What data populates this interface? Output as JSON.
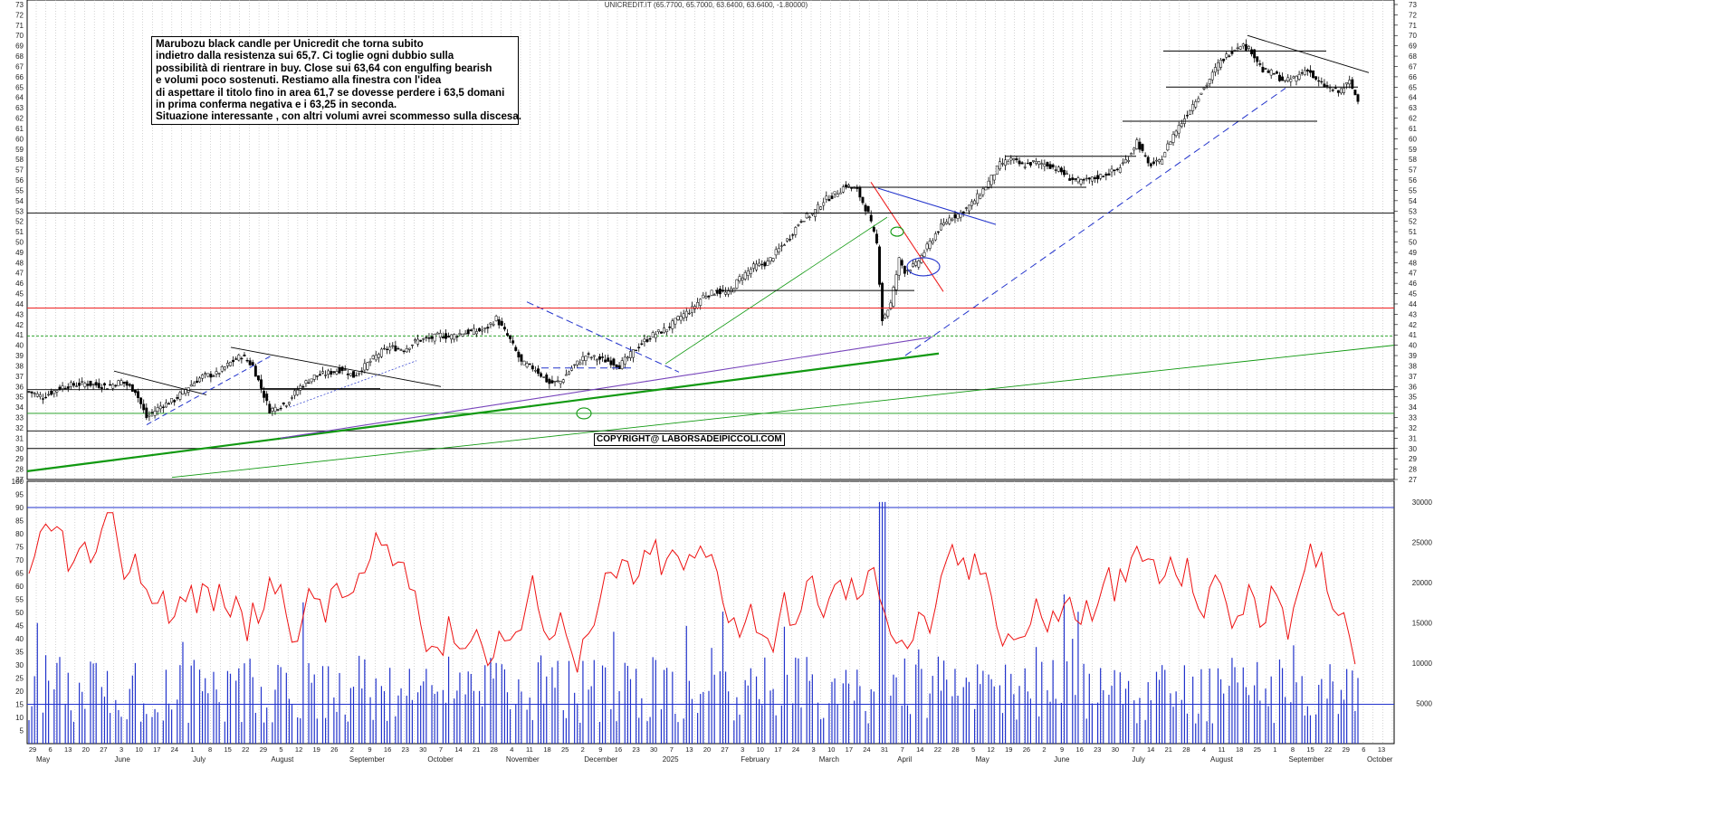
{
  "header": {
    "title": "UNICREDIT.IT (65.7700, 65.7000, 63.6400, 63.6400, -1.80000)"
  },
  "note": {
    "lines": [
      "Marubozu black candle per Unicredit che torna subito",
      "indietro dalla resistenza sui 65,7. Ci toglie ogni dubbio sulla",
      "possibilità di rientrare in buy. Close sui 63,64 con engulfing bearish",
      "e volumi poco sostenuti. Restiamo alla finestra con l'idea",
      "di aspettare il titolo fino in area 61,7 se dovesse perdere i 63,5 domani",
      "in prima conferma negativa e i 63,25 in seconda.",
      "Situazione interessante , con altri volumi avrei scommesso sulla discesa."
    ]
  },
  "copyright": "COPYRIGHT@ LABORSADEIPICCOLI.COM",
  "colors": {
    "candle": "#000000",
    "support_green": "#119911",
    "resistance_red": "#ee2222",
    "trend_blue": "#2233cc",
    "oscillator": "#ee1111",
    "volume": "#2233cc",
    "purple": "#7744bb"
  },
  "chart_data": [
    {
      "type": "candlestick",
      "title": "UNICREDIT.IT (65.7700, 65.7000, 63.6400, 63.6400, -1.80000)",
      "ylim": [
        27,
        73
      ],
      "y_ticks": [
        27,
        28,
        29,
        30,
        31,
        32,
        33,
        34,
        35,
        36,
        37,
        38,
        39,
        40,
        41,
        42,
        43,
        44,
        45,
        46,
        47,
        48,
        49,
        50,
        51,
        52,
        53,
        54,
        55,
        56,
        57,
        58,
        59,
        60,
        61,
        62,
        63,
        64,
        65,
        66,
        67,
        68,
        69,
        70,
        71,
        72,
        73
      ],
      "last_bar": {
        "open": 65.77,
        "high": 65.7,
        "low": 63.64,
        "close": 63.64,
        "change": -1.8
      },
      "months": [
        "May",
        "June",
        "July",
        "August",
        "September",
        "October",
        "November",
        "December",
        "2025",
        "February",
        "March",
        "April",
        "May",
        "June",
        "July",
        "August",
        "September",
        "October"
      ],
      "day_labels": [
        "29",
        "6",
        "13",
        "20",
        "27",
        "3",
        "10",
        "17",
        "24",
        "1",
        "8",
        "15",
        "22",
        "29",
        "5",
        "12",
        "19",
        "26",
        "2",
        "9",
        "16",
        "23",
        "30",
        "7",
        "14",
        "21",
        "28",
        "4",
        "11",
        "18",
        "25",
        "2",
        "9",
        "16",
        "23",
        "30",
        "7",
        "13",
        "20",
        "27",
        "3",
        "10",
        "17",
        "24",
        "3",
        "10",
        "17",
        "24",
        "31",
        "7",
        "14",
        "22",
        "28",
        "5",
        "12",
        "19",
        "26",
        "2",
        "9",
        "16",
        "23",
        "30",
        "7",
        "14",
        "21",
        "28",
        "4",
        "11",
        "18",
        "25",
        "1",
        "8",
        "15",
        "22",
        "29",
        "6",
        "13"
      ],
      "close_path": [
        [
          0,
          35.5
        ],
        [
          5,
          35
        ],
        [
          12,
          36
        ],
        [
          20,
          36.3
        ],
        [
          28,
          36
        ],
        [
          33,
          36.5
        ],
        [
          38,
          35.6
        ],
        [
          42,
          33
        ],
        [
          47,
          34.1
        ],
        [
          52,
          34.7
        ],
        [
          57,
          36
        ],
        [
          62,
          37
        ],
        [
          67,
          37.2
        ],
        [
          72,
          38.3
        ],
        [
          76,
          39
        ],
        [
          80,
          38
        ],
        [
          86,
          33.7
        ],
        [
          92,
          34.4
        ],
        [
          97,
          36
        ],
        [
          102,
          37
        ],
        [
          107,
          37.3
        ],
        [
          112,
          37.7
        ],
        [
          116,
          37
        ],
        [
          121,
          38.2
        ],
        [
          125,
          39.2
        ],
        [
          129,
          39.8
        ],
        [
          134,
          39.6
        ],
        [
          139,
          40.5
        ],
        [
          143,
          40.6
        ],
        [
          147,
          41
        ],
        [
          150,
          40.8
        ],
        [
          155,
          41.2
        ],
        [
          158,
          41.3
        ],
        [
          163,
          41.5
        ],
        [
          167,
          42.6
        ],
        [
          172,
          40.5
        ],
        [
          176,
          38.3
        ],
        [
          181,
          37.7
        ],
        [
          186,
          36.3
        ],
        [
          190,
          36.5
        ],
        [
          194,
          37.8
        ],
        [
          199,
          39
        ],
        [
          203,
          38.7
        ],
        [
          208,
          38.4
        ],
        [
          211,
          38
        ],
        [
          215,
          39.1
        ],
        [
          219,
          40.2
        ],
        [
          223,
          41
        ],
        [
          228,
          41.6
        ],
        [
          233,
          42.8
        ],
        [
          237,
          43.5
        ],
        [
          241,
          44.8
        ],
        [
          246,
          45.2
        ],
        [
          250,
          45
        ],
        [
          254,
          46.5
        ],
        [
          259,
          47.6
        ],
        [
          264,
          48
        ],
        [
          268,
          49.3
        ],
        [
          272,
          50.5
        ],
        [
          276,
          52.2
        ],
        [
          280,
          52.7
        ],
        [
          284,
          54
        ],
        [
          288,
          54.6
        ],
        [
          292,
          55.5
        ],
        [
          296,
          55
        ],
        [
          300,
          52.7
        ],
        [
          303,
          49.8
        ],
        [
          305,
          42.5
        ],
        [
          308,
          44
        ],
        [
          311,
          48.3
        ],
        [
          313,
          47.2
        ],
        [
          317,
          47.8
        ],
        [
          321,
          49.5
        ],
        [
          325,
          51.2
        ],
        [
          329,
          52.3
        ],
        [
          333,
          52.8
        ],
        [
          337,
          53.7
        ],
        [
          342,
          55.4
        ],
        [
          347,
          57.5
        ],
        [
          351,
          58
        ],
        [
          355,
          57.4
        ],
        [
          359,
          57.7
        ],
        [
          364,
          57.5
        ],
        [
          368,
          57
        ],
        [
          372,
          56.2
        ],
        [
          376,
          55.8
        ],
        [
          380,
          56.1
        ],
        [
          385,
          56.6
        ],
        [
          389,
          57
        ],
        [
          393,
          58.2
        ],
        [
          396,
          59.8
        ],
        [
          400,
          57.5
        ],
        [
          404,
          57.7
        ],
        [
          409,
          60.4
        ],
        [
          413,
          62
        ],
        [
          417,
          63.8
        ],
        [
          421,
          65.3
        ],
        [
          425,
          67.2
        ],
        [
          429,
          68.3
        ],
        [
          433,
          69.2
        ],
        [
          437,
          68.5
        ],
        [
          441,
          66.6
        ],
        [
          445,
          66.3
        ],
        [
          449,
          65.5
        ],
        [
          453,
          66
        ],
        [
          457,
          66.8
        ],
        [
          460,
          65.6
        ],
        [
          464,
          65
        ],
        [
          468,
          64.5
        ],
        [
          472,
          65.5
        ],
        [
          475,
          63.64
        ]
      ],
      "volume_ylim": [
        0,
        32000
      ],
      "volume_ticks": [
        5000,
        10000,
        15000,
        20000,
        25000,
        30000
      ],
      "oscillator_ylim": [
        0,
        100
      ],
      "oscillator_ticks": [
        5,
        10,
        15,
        20,
        25,
        30,
        35,
        40,
        45,
        50,
        55,
        60,
        65,
        70,
        75,
        80,
        85,
        90,
        95,
        100
      ],
      "oscillator_levels": [
        15,
        90
      ]
    }
  ]
}
